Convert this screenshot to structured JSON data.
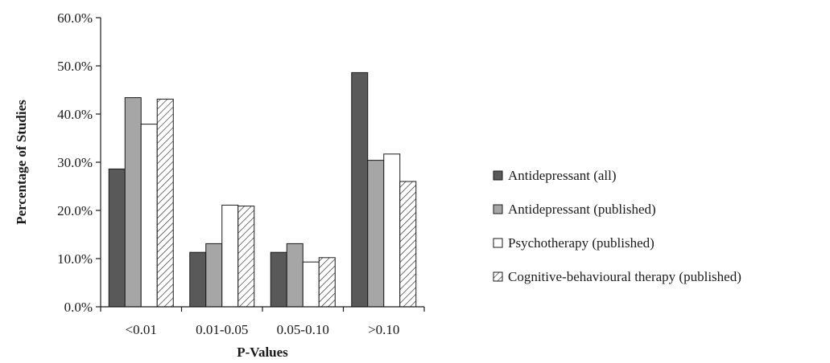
{
  "chart_data": {
    "type": "bar",
    "title": "",
    "xlabel": "P-Values",
    "ylabel": "Percentage of Studies",
    "categories": [
      "<0.01",
      "0.01-0.05",
      "0.05-0.10",
      ">0.10"
    ],
    "ylim": [
      0,
      60
    ],
    "yticks": [
      0,
      10,
      20,
      30,
      40,
      50,
      60
    ],
    "ytick_labels": [
      "0.0%",
      "10.0%",
      "20.0%",
      "30.0%",
      "40.0%",
      "50.0%",
      "60.0%"
    ],
    "grid": false,
    "legend_position": "right",
    "series": [
      {
        "name": "Antidepressant (all)",
        "values": [
          28.6,
          11.3,
          11.3,
          48.6
        ],
        "color": "#595959",
        "pattern": "solid"
      },
      {
        "name": "Antidepressant (published)",
        "values": [
          43.4,
          13.1,
          13.1,
          30.4
        ],
        "color": "#a6a6a6",
        "pattern": "solid"
      },
      {
        "name": "Psychotherapy (published)",
        "values": [
          37.9,
          21.1,
          9.3,
          31.7
        ],
        "color": "#ffffff",
        "pattern": "solid"
      },
      {
        "name": "Cognitive-behavioural therapy (published)",
        "values": [
          43.1,
          20.9,
          10.2,
          26.0
        ],
        "color": "#ffffff",
        "pattern": "hatch"
      }
    ]
  }
}
